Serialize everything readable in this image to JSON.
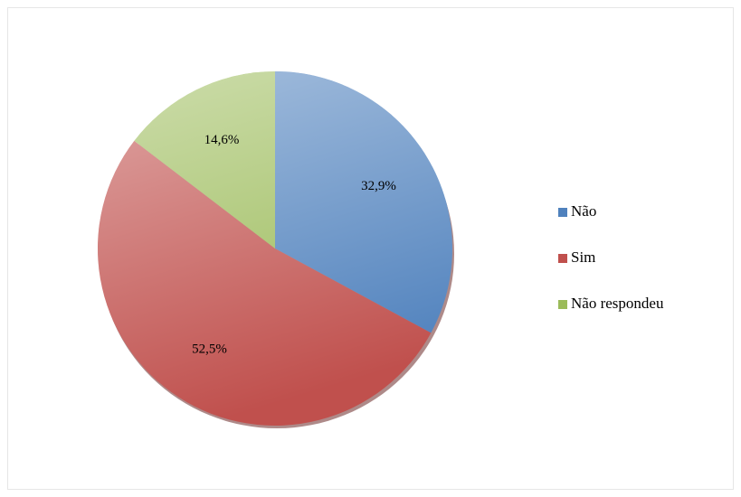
{
  "chart_data": {
    "type": "pie",
    "categories": [
      "Não",
      "Sim",
      "Não respondeu"
    ],
    "values": [
      32.9,
      52.5,
      14.6
    ],
    "value_labels": [
      "32,9%",
      "52,5%",
      "14,6%"
    ],
    "colors": [
      "#4f81bd",
      "#c0504d",
      "#9bbb59"
    ],
    "legend": "right"
  }
}
